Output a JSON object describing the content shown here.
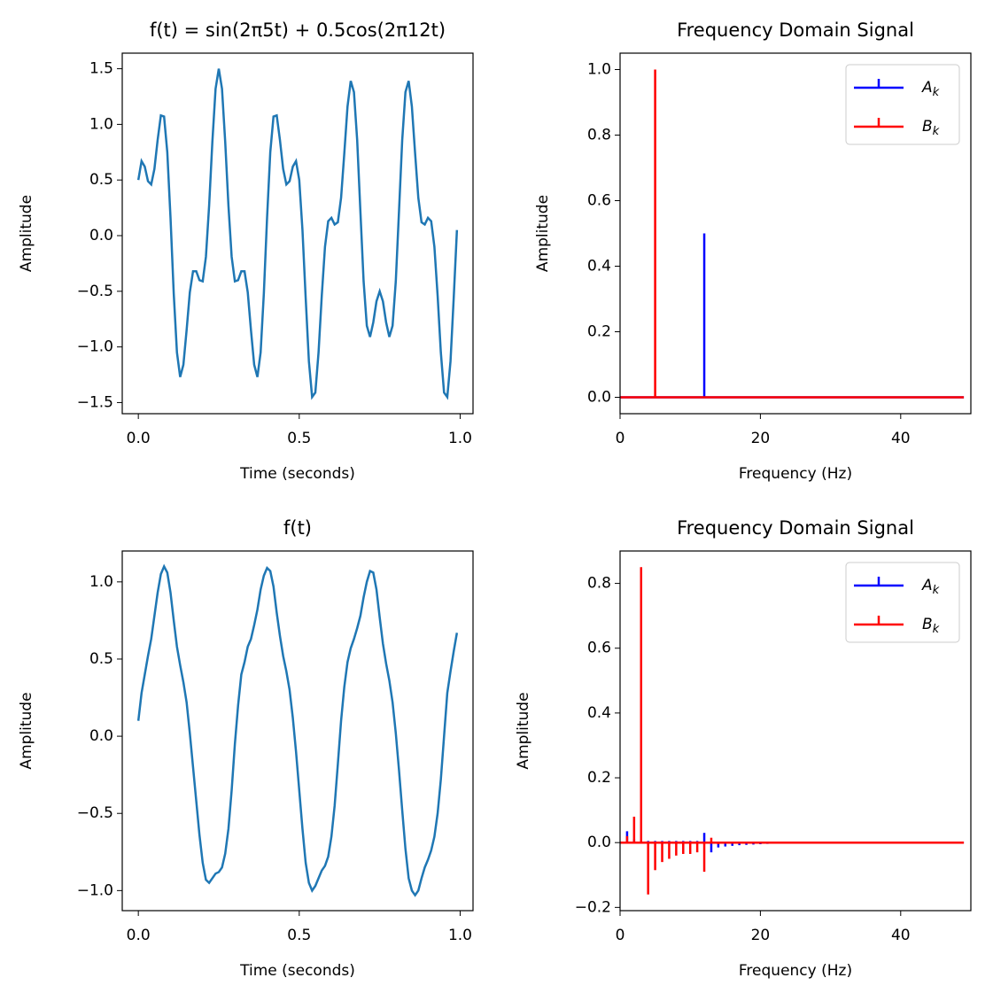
{
  "chart_data": [
    {
      "type": "line",
      "title": "f(t) = sin(2π5t) + 0.5cos(2π12t)",
      "xlabel": "Time (seconds)",
      "ylabel": "Amplitude",
      "x": [
        0,
        0.01,
        0.02,
        0.03,
        0.04,
        0.05,
        0.06,
        0.07,
        0.08,
        0.09,
        0.1,
        0.11,
        0.12,
        0.13,
        0.14,
        0.15,
        0.16,
        0.17,
        0.18,
        0.19,
        0.2,
        0.21,
        0.22,
        0.23,
        0.24,
        0.25,
        0.26,
        0.27,
        0.28,
        0.29,
        0.3,
        0.31,
        0.32,
        0.33,
        0.34,
        0.35,
        0.36,
        0.37,
        0.38,
        0.39,
        0.4,
        0.41,
        0.42,
        0.43,
        0.44,
        0.45,
        0.46,
        0.47,
        0.48,
        0.49,
        0.5,
        0.51,
        0.52,
        0.53,
        0.54,
        0.55,
        0.56,
        0.57,
        0.58,
        0.59,
        0.6,
        0.61,
        0.62,
        0.63,
        0.64,
        0.65,
        0.66,
        0.67,
        0.68,
        0.69,
        0.7,
        0.71,
        0.72,
        0.73,
        0.74,
        0.75,
        0.76,
        0.77,
        0.78,
        0.79,
        0.8,
        0.81,
        0.82,
        0.83,
        0.84,
        0.85,
        0.86,
        0.87,
        0.88,
        0.89,
        0.9,
        0.91,
        0.92,
        0.93,
        0.94,
        0.95,
        0.96,
        0.97,
        0.98,
        0.99
      ],
      "series": [
        {
          "color": "#1f77b4",
          "values": [
            0.5,
            0.67,
            0.62,
            0.49,
            0.46,
            0.6,
            0.86,
            1.08,
            1.07,
            0.75,
            0.16,
            -0.52,
            -1.05,
            -1.27,
            -1.16,
            -0.85,
            -0.51,
            -0.32,
            -0.32,
            -0.4,
            -0.41,
            -0.19,
            0.27,
            0.84,
            1.32,
            1.5,
            1.32,
            0.84,
            0.27,
            -0.19,
            -0.41,
            -0.4,
            -0.32,
            -0.32,
            -0.51,
            -0.85,
            -1.16,
            -1.27,
            -1.05,
            -0.52,
            0.16,
            0.75,
            1.07,
            1.08,
            0.86,
            0.6,
            0.46,
            0.49,
            0.62,
            0.67,
            0.5,
            0.05,
            -0.56,
            -1.13,
            -1.45,
            -1.41,
            -1.05,
            -0.54,
            -0.1,
            0.13,
            0.16,
            0.1,
            0.12,
            0.34,
            0.74,
            1.16,
            1.39,
            1.29,
            0.86,
            0.22,
            -0.41,
            -0.81,
            -0.91,
            -0.78,
            -0.59,
            -0.5,
            -0.59,
            -0.78,
            -0.91,
            -0.81,
            -0.41,
            0.22,
            0.86,
            1.29,
            1.39,
            1.16,
            0.74,
            0.34,
            0.12,
            0.1,
            0.16,
            0.13,
            -0.1,
            -0.54,
            -1.05,
            -1.41,
            -1.45,
            -1.13,
            -0.56,
            0.05
          ]
        }
      ],
      "xlim": [
        -0.05,
        1.04
      ],
      "xticks": [
        {
          "value": 0,
          "label": "0.0"
        },
        0.5,
        {
          "value": 1,
          "label": "1.0"
        }
      ],
      "ylim": [
        -1.6,
        1.64
      ],
      "yticks": [
        {
          "value": -1.5,
          "label": "−1.5"
        },
        {
          "value": -1,
          "label": "−1.0"
        },
        {
          "value": -0.5,
          "label": "−0.5"
        },
        {
          "value": 0,
          "label": "0.0"
        },
        0.5,
        {
          "value": 1,
          "label": "1.0"
        },
        1.5
      ]
    },
    {
      "type": "stem",
      "title": "Frequency Domain Signal",
      "xlabel": "Frequency (Hz)",
      "ylabel": "Amplitude",
      "legend": "upper right",
      "x": [
        0,
        1,
        2,
        3,
        4,
        5,
        6,
        7,
        8,
        9,
        10,
        11,
        12,
        13,
        14,
        15,
        16,
        17,
        18,
        19,
        20,
        21,
        22,
        23,
        24,
        25,
        26,
        27,
        28,
        29,
        30,
        31,
        32,
        33,
        34,
        35,
        36,
        37,
        38,
        39,
        40,
        41,
        42,
        43,
        44,
        45,
        46,
        47,
        48,
        49
      ],
      "series": [
        {
          "name": "Ak",
          "color": "#0000ff",
          "values": [
            0,
            0,
            0,
            0,
            0,
            0,
            0,
            0,
            0,
            0,
            0,
            0,
            0.5,
            0,
            0,
            0,
            0,
            0,
            0,
            0,
            0,
            0,
            0,
            0,
            0,
            0,
            0,
            0,
            0,
            0,
            0,
            0,
            0,
            0,
            0,
            0,
            0,
            0,
            0,
            0,
            0,
            0,
            0,
            0,
            0,
            0,
            0,
            0,
            0,
            0
          ]
        },
        {
          "name": "Bk",
          "color": "#ff0000",
          "values": [
            0,
            0,
            0,
            0,
            0,
            1,
            0,
            0,
            0,
            0,
            0,
            0,
            0,
            0,
            0,
            0,
            0,
            0,
            0,
            0,
            0,
            0,
            0,
            0,
            0,
            0,
            0,
            0,
            0,
            0,
            0,
            0,
            0,
            0,
            0,
            0,
            0,
            0,
            0,
            0,
            0,
            0,
            0,
            0,
            0,
            0,
            0,
            0,
            0,
            0
          ]
        }
      ],
      "xlim": [
        0,
        50
      ],
      "xticks": [
        0,
        20,
        40
      ],
      "ylim": [
        -0.05,
        1.05
      ],
      "yticks": [
        {
          "value": 0,
          "label": "0.0"
        },
        0.2,
        0.4,
        0.6,
        0.8,
        {
          "value": 1,
          "label": "1.0"
        }
      ]
    },
    {
      "type": "line",
      "title": "f(t)",
      "xlabel": "Time (seconds)",
      "ylabel": "Amplitude",
      "x": [
        0,
        0.01,
        0.02,
        0.03,
        0.04,
        0.05,
        0.06,
        0.07,
        0.08,
        0.09,
        0.1,
        0.11,
        0.12,
        0.13,
        0.14,
        0.15,
        0.16,
        0.17,
        0.18,
        0.19,
        0.2,
        0.21,
        0.22,
        0.23,
        0.24,
        0.25,
        0.26,
        0.27,
        0.28,
        0.29,
        0.3,
        0.31,
        0.32,
        0.33,
        0.34,
        0.35,
        0.36,
        0.37,
        0.38,
        0.39,
        0.4,
        0.41,
        0.42,
        0.43,
        0.44,
        0.45,
        0.46,
        0.47,
        0.48,
        0.49,
        0.5,
        0.51,
        0.52,
        0.53,
        0.54,
        0.55,
        0.56,
        0.57,
        0.58,
        0.59,
        0.6,
        0.61,
        0.62,
        0.63,
        0.64,
        0.65,
        0.66,
        0.67,
        0.68,
        0.69,
        0.7,
        0.71,
        0.72,
        0.73,
        0.74,
        0.75,
        0.76,
        0.77,
        0.78,
        0.79,
        0.8,
        0.81,
        0.82,
        0.83,
        0.84,
        0.85,
        0.86,
        0.87,
        0.88,
        0.89,
        0.9,
        0.91,
        0.92,
        0.93,
        0.94,
        0.95,
        0.96,
        0.97,
        0.98,
        0.99
      ],
      "series": [
        {
          "color": "#1f77b4",
          "values": [
            0.1,
            0.28,
            0.4,
            0.52,
            0.63,
            0.78,
            0.93,
            1.05,
            1.1,
            1.06,
            0.93,
            0.75,
            0.58,
            0.46,
            0.35,
            0.22,
            0.02,
            -0.2,
            -0.42,
            -0.64,
            -0.82,
            -0.93,
            -0.95,
            -0.92,
            -0.89,
            -0.88,
            -0.85,
            -0.76,
            -0.6,
            -0.35,
            -0.05,
            0.2,
            0.4,
            0.48,
            0.58,
            0.63,
            0.72,
            0.82,
            0.95,
            1.04,
            1.09,
            1.07,
            0.97,
            0.8,
            0.65,
            0.52,
            0.42,
            0.3,
            0.12,
            -0.1,
            -0.35,
            -0.6,
            -0.82,
            -0.95,
            -1,
            -0.97,
            -0.92,
            -0.87,
            -0.84,
            -0.78,
            -0.65,
            -0.45,
            -0.18,
            0.1,
            0.32,
            0.48,
            0.57,
            0.63,
            0.7,
            0.78,
            0.9,
            1,
            1.07,
            1.06,
            0.95,
            0.77,
            0.6,
            0.47,
            0.36,
            0.22,
            0.02,
            -0.22,
            -0.48,
            -0.73,
            -0.92,
            -1,
            -1.03,
            -1,
            -0.92,
            -0.85,
            -0.8,
            -0.74,
            -0.65,
            -0.5,
            -0.28,
            0,
            0.28,
            0.42,
            0.55,
            0.67
          ]
        }
      ],
      "xlim": [
        -0.05,
        1.04
      ],
      "xticks": [
        {
          "value": 0,
          "label": "0.0"
        },
        0.5,
        {
          "value": 1,
          "label": "1.0"
        }
      ],
      "ylim": [
        -1.13,
        1.2
      ],
      "yticks": [
        {
          "value": -1,
          "label": "−1.0"
        },
        {
          "value": -0.5,
          "label": "−0.5"
        },
        {
          "value": 0,
          "label": "0.0"
        },
        0.5,
        {
          "value": 1,
          "label": "1.0"
        }
      ]
    },
    {
      "type": "stem",
      "title": "Frequency Domain Signal",
      "xlabel": "Frequency (Hz)",
      "ylabel": "Amplitude",
      "legend": "upper right",
      "x": [
        0,
        1,
        2,
        3,
        4,
        5,
        6,
        7,
        8,
        9,
        10,
        11,
        12,
        13,
        14,
        15,
        16,
        17,
        18,
        19,
        20,
        21,
        22,
        23,
        24,
        25,
        26,
        27,
        28,
        29,
        30,
        31,
        32,
        33,
        34,
        35,
        36,
        37,
        38,
        39,
        40,
        41,
        42,
        43,
        44,
        45,
        46,
        47,
        48,
        49
      ],
      "series": [
        {
          "name": "Ak",
          "color": "#0000ff",
          "values": [
            0,
            0.035,
            0.01,
            0.01,
            0.005,
            0.005,
            0.005,
            0.005,
            0.005,
            0.005,
            0.005,
            0.005,
            0.03,
            -0.03,
            -0.015,
            -0.012,
            -0.01,
            -0.008,
            -0.007,
            -0.006,
            -0.005,
            -0.004,
            -0.003,
            0,
            0,
            0,
            0,
            0,
            0,
            0,
            0,
            0,
            0,
            0,
            0,
            0,
            0,
            0,
            0,
            0,
            0,
            0,
            0,
            0,
            0,
            0,
            0,
            0,
            0,
            0
          ]
        },
        {
          "name": "Bk",
          "color": "#ff0000",
          "values": [
            0,
            0.02,
            0.08,
            0.85,
            -0.16,
            -0.085,
            -0.06,
            -0.05,
            -0.04,
            -0.035,
            -0.035,
            -0.03,
            -0.09,
            0.015,
            -0.005,
            0,
            0,
            0,
            0,
            0,
            0,
            0,
            0,
            0,
            0,
            0,
            0,
            0,
            0,
            0,
            0,
            0,
            0,
            0,
            0,
            0,
            0,
            0,
            0,
            0,
            0,
            0,
            0,
            0,
            0,
            0,
            0,
            0,
            0,
            0
          ]
        }
      ],
      "xlim": [
        0,
        50
      ],
      "xticks": [
        0,
        20,
        40
      ],
      "ylim": [
        -0.21,
        0.9
      ],
      "yticks": [
        {
          "value": -0.2,
          "label": "−0.2"
        },
        {
          "value": 0,
          "label": "0.0"
        },
        0.2,
        0.4,
        0.6,
        0.8
      ]
    }
  ]
}
